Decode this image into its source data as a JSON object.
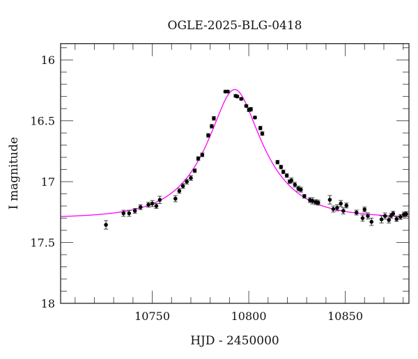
{
  "chart_data": {
    "type": "scatter",
    "title": "OGLE-2025-BLG-0418",
    "xlabel": "HJD - 2450000",
    "ylabel": "I magnitude",
    "xlim": [
      10702.5,
      10883
    ],
    "ylim": [
      18.0,
      15.866
    ],
    "y_inverted": true,
    "x_ticks": [
      10750,
      10800,
      10850
    ],
    "x_tick_labels": [
      "10750",
      "10800",
      "10850"
    ],
    "x_minor_step": 10,
    "y_ticks": [
      16,
      16.5,
      17,
      17.5,
      18
    ],
    "y_tick_labels": [
      "16",
      "16.5",
      "17",
      "17.5",
      "18"
    ],
    "y_minor_step": 0.1,
    "grid": false,
    "point_color": "#000000",
    "model_color": "#ff00ff",
    "model": {
      "kind": "point-lens",
      "t0": 10792.7,
      "u0": 0.4,
      "tE": 27.7,
      "baseline_mag": 17.3
    },
    "points": {
      "x": [
        10726.0,
        10735.1,
        10738.0,
        10741.0,
        10743.9,
        10748.0,
        10750.0,
        10752.1,
        10753.9,
        10762.0,
        10764.0,
        10765.9,
        10767.9,
        10770.0,
        10772.0,
        10773.8,
        10775.9,
        10779.0,
        10780.8,
        10781.9,
        10787.9,
        10789.1,
        10793.2,
        10794.0,
        10796.1,
        10798.7,
        10800.1,
        10801.1,
        10803.2,
        10806.0,
        10807.0,
        10814.9,
        10816.7,
        10817.9,
        10819.7,
        10821.2,
        10822.1,
        10823.9,
        10825.7,
        10827.0,
        10828.8,
        10831.7,
        10833.0,
        10834.7,
        10836.0,
        10842.0,
        10843.8,
        10845.8,
        10847.7,
        10849.0,
        10850.6,
        10855.8,
        10859.0,
        10860.0,
        10861.7,
        10863.6,
        10868.8,
        10870.6,
        10872.6,
        10873.8,
        10874.8,
        10876.6,
        10878.6,
        10880.4,
        10881.6
      ],
      "y": [
        17.355,
        17.26,
        17.26,
        17.24,
        17.21,
        17.19,
        17.18,
        17.2,
        17.15,
        17.14,
        17.076,
        17.036,
        17.0,
        16.97,
        16.91,
        16.81,
        16.78,
        16.62,
        16.545,
        16.48,
        16.26,
        16.26,
        16.295,
        16.3,
        16.32,
        16.378,
        16.41,
        16.405,
        16.473,
        16.56,
        16.605,
        16.84,
        16.88,
        16.92,
        16.95,
        17.0,
        16.99,
        17.025,
        17.057,
        17.066,
        17.12,
        17.152,
        17.158,
        17.168,
        17.173,
        17.149,
        17.225,
        17.215,
        17.18,
        17.24,
        17.196,
        17.254,
        17.3,
        17.229,
        17.282,
        17.33,
        17.31,
        17.282,
        17.315,
        17.28,
        17.263,
        17.307,
        17.29,
        17.27,
        17.266
      ],
      "err": [
        0.035,
        0.025,
        0.025,
        0.02,
        0.02,
        0.02,
        0.025,
        0.02,
        0.03,
        0.025,
        0.02,
        0.02,
        0.02,
        0.02,
        0.015,
        0.015,
        0.015,
        0.015,
        0.015,
        0.015,
        0.01,
        0.01,
        0.01,
        0.01,
        0.01,
        0.01,
        0.015,
        0.015,
        0.01,
        0.015,
        0.015,
        0.015,
        0.015,
        0.015,
        0.015,
        0.015,
        0.02,
        0.02,
        0.02,
        0.02,
        0.015,
        0.02,
        0.025,
        0.02,
        0.02,
        0.035,
        0.025,
        0.025,
        0.025,
        0.025,
        0.02,
        0.02,
        0.025,
        0.02,
        0.025,
        0.03,
        0.03,
        0.025,
        0.025,
        0.02,
        0.02,
        0.02,
        0.02,
        0.02,
        0.02
      ]
    }
  }
}
